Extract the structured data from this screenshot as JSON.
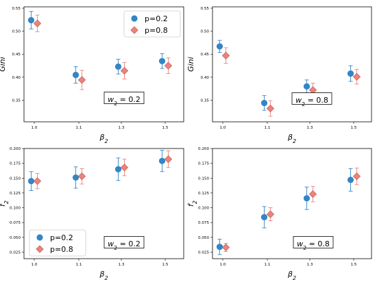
{
  "colors": {
    "p02": "#3385c6",
    "p08": "#e8847c",
    "p08_edge": "#c1554b"
  },
  "legend_entries": {
    "p02": "p=0.2",
    "p08": "p=0.8"
  },
  "chart_data": [
    {
      "type": "scatter",
      "categories": [
        "1.0",
        "1.1",
        "1.3",
        "1.5"
      ],
      "xlabel": "β2",
      "ylabel": "Gini",
      "ylim": [
        0.303,
        0.553
      ],
      "yticks": [
        "0.35",
        "0.40",
        "0.45",
        "0.50",
        "0.55"
      ],
      "annotation": "w2 = 0.2",
      "legend": "top-right",
      "series": [
        {
          "name": "p=0.2",
          "marker": "circle",
          "values": [
            0.524,
            0.405,
            0.423,
            0.435
          ],
          "err": [
            0.019,
            0.018,
            0.016,
            0.016
          ]
        },
        {
          "name": "p=0.8",
          "marker": "diamond",
          "values": [
            0.517,
            0.394,
            0.414,
            0.425
          ],
          "err": [
            0.018,
            0.021,
            0.018,
            0.017
          ]
        }
      ]
    },
    {
      "type": "scatter",
      "categories": [
        "1.0",
        "1.1",
        "1.3",
        "1.5"
      ],
      "xlabel": "β2",
      "ylabel": "Gini",
      "ylim": [
        0.303,
        0.553
      ],
      "yticks": [
        "0.35",
        "0.40",
        "0.45",
        "0.50",
        "0.55"
      ],
      "annotation": "w2 = 0.8",
      "legend": "none",
      "series": [
        {
          "name": "p=0.2",
          "marker": "circle",
          "values": [
            0.467,
            0.344,
            0.38,
            0.408
          ],
          "err": [
            0.013,
            0.016,
            0.014,
            0.017
          ]
        },
        {
          "name": "p=0.8",
          "marker": "diamond",
          "values": [
            0.447,
            0.332,
            0.372,
            0.401
          ],
          "err": [
            0.017,
            0.017,
            0.015,
            0.016
          ]
        }
      ]
    },
    {
      "type": "scatter",
      "categories": [
        "1.0",
        "1.1",
        "1.3",
        "1.5"
      ],
      "xlabel": "β2",
      "ylabel": "f2",
      "ylim": [
        0.014,
        0.2
      ],
      "yticks": [
        "0.025",
        "0.050",
        "0.075",
        "0.100",
        "0.125",
        "0.150",
        "0.175",
        "0.200"
      ],
      "annotation": "w2 = 0.2",
      "legend": "bottom-left",
      "series": [
        {
          "name": "p=0.2",
          "marker": "circle",
          "values": [
            0.145,
            0.151,
            0.165,
            0.179
          ],
          "err": [
            0.016,
            0.018,
            0.019,
            0.018
          ]
        },
        {
          "name": "p=0.8",
          "marker": "diamond",
          "values": [
            0.145,
            0.153,
            0.168,
            0.182
          ],
          "err": [
            0.013,
            0.013,
            0.014,
            0.014
          ]
        }
      ]
    },
    {
      "type": "scatter",
      "categories": [
        "1.0",
        "1.1",
        "1.3",
        "1.5"
      ],
      "xlabel": "β2",
      "ylabel": "f2",
      "ylim": [
        0.014,
        0.2
      ],
      "yticks": [
        "0.025",
        "0.050",
        "0.075",
        "0.100",
        "0.125",
        "0.150",
        "0.175",
        "0.200"
      ],
      "annotation": "w2 = 0.8",
      "legend": "none",
      "series": [
        {
          "name": "p=0.2",
          "marker": "circle",
          "values": [
            0.034,
            0.084,
            0.116,
            0.147
          ],
          "err": [
            0.013,
            0.018,
            0.019,
            0.019
          ]
        },
        {
          "name": "p=0.8",
          "marker": "diamond",
          "values": [
            0.033,
            0.089,
            0.123,
            0.153
          ],
          "err": [
            0.007,
            0.011,
            0.013,
            0.014
          ]
        }
      ]
    }
  ]
}
